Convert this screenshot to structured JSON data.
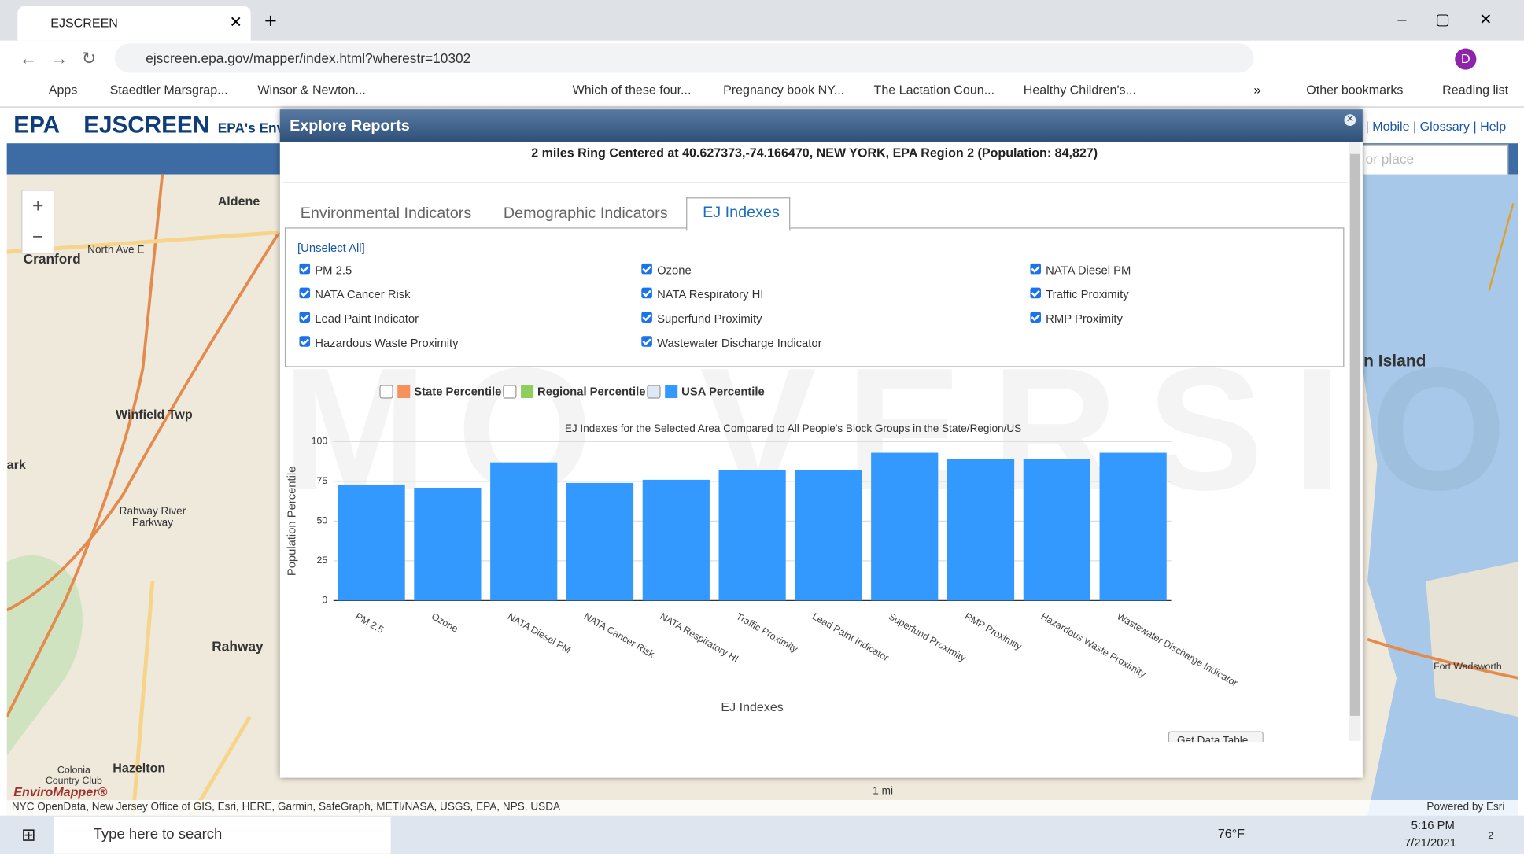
{
  "browser": {
    "tab_title": "EJSCREEN",
    "url": "ejscreen.epa.gov/mapper/index.html?wherestr=10302",
    "bookmarks": [
      "Apps",
      "Staedtler Marsgrap...",
      "Winsor & Newton...",
      "Which of these four...",
      "Pregnancy book NY...",
      "The Lactation Coun...",
      "Healthy Children's..."
    ],
    "overflow": "»",
    "other_bookmarks": "Other bookmarks",
    "reading_list": "Reading list",
    "profile": "D"
  },
  "app": {
    "logo": "EPA",
    "name": "EJSCREEN",
    "tagline": "EPA's Env",
    "links": [
      "| Mobile",
      "| Glossary",
      "| Help"
    ],
    "search_placeholder": "or place"
  },
  "map": {
    "labels": [
      "Aldene",
      "Cranford",
      "North Ave E",
      "Winfield Twp",
      "ark",
      "Rahway River Parkway",
      "Rahway",
      "Hazelton",
      "Colonia Country Club",
      "n Island",
      "Fort Wadsworth"
    ],
    "brand": "EnviroMapper®",
    "attribution": "NYC OpenData, New Jersey Office of GIS, Esri, HERE, Garmin, SafeGraph, METI/NASA, USGS, EPA, NPS, USDA",
    "powered": "Powered by Esri",
    "scale": "1 mi"
  },
  "dialog": {
    "title": "Explore Reports",
    "subtitle": "2 miles Ring Centered at 40.627373,-74.166470, NEW YORK, EPA Region 2 (Population: 84,827)",
    "tabs": [
      "Environmental Indicators",
      "Demographic Indicators",
      "EJ Indexes"
    ],
    "unselect": "[Unselect All]",
    "checkboxes": [
      [
        "PM 2.5",
        "Ozone",
        "NATA Diesel PM"
      ],
      [
        "NATA Cancer Risk",
        "NATA Respiratory HI",
        "Traffic Proximity"
      ],
      [
        "Lead Paint Indicator",
        "Superfund Proximity",
        "RMP Proximity"
      ],
      [
        "Hazardous Waste Proximity",
        "Wastewater Discharge Indicator"
      ]
    ],
    "watermark": "MO VERSIO",
    "button": "Get Data Table"
  },
  "chart_data": {
    "type": "bar",
    "title": "EJ Indexes for the Selected Area Compared to All People's Block Groups in the State/Region/US",
    "x_label": "EJ Indexes",
    "y_label": "Population Percentile",
    "categories": [
      "PM 2.5",
      "Ozone",
      "NATA Diesel PM",
      "NATA Cancer Risk",
      "NATA Respiratory HI",
      "Traffic Proximity",
      "Lead Paint Indicator",
      "Superfund Proximity",
      "RMP Proximity",
      "Hazardous Waste Proximity",
      "Wastewater Discharge Indicator"
    ],
    "series": [
      {
        "name": "USA Percentile",
        "color": "#3399ff",
        "values": [
          73,
          71,
          87,
          74,
          76,
          82,
          82,
          93,
          89,
          89,
          93
        ]
      }
    ],
    "hidden_series": [
      {
        "name": "State Percentile",
        "color": "#f4915c"
      },
      {
        "name": "Regional Percentile",
        "color": "#8fce5c"
      }
    ],
    "ylim": [
      0,
      100
    ],
    "yticks": [
      0,
      25,
      50,
      75,
      100
    ],
    "grid": true
  },
  "taskbar": {
    "search": "Type here to search",
    "temperature": "76°F",
    "time": "5:16 PM",
    "date": "7/21/2021",
    "notifications": "2"
  }
}
